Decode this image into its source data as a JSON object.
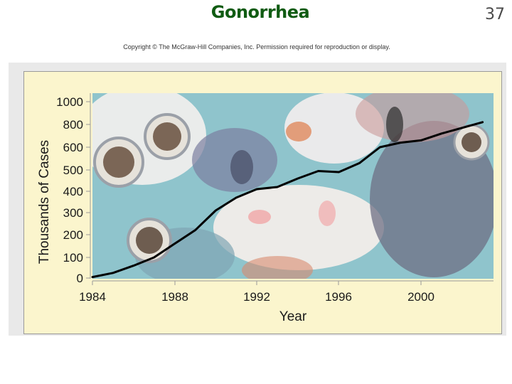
{
  "slide": {
    "title": "Gonorrhea",
    "page_number": "37",
    "copyright": "Copyright © The McGraw-Hill Companies, Inc. Permission required for reproduction or display."
  },
  "background_image": "micrograph of gonorrhea bacteria inside cells",
  "colors": {
    "title": "#0f5b12",
    "line": "#000000",
    "frame_fill": "#fbf5cd"
  },
  "chart_data": {
    "type": "line",
    "title": "",
    "xlabel": "Year",
    "ylabel": "Thousands of Cases",
    "x_ticks": [
      "1984",
      "1988",
      "1992",
      "1996",
      "2000"
    ],
    "y_ticks": [
      "0",
      "100",
      "200",
      "300",
      "400",
      "500",
      "600",
      "800",
      "1000"
    ],
    "y_scale": "nonlinear (compressed above 500)",
    "xlim": [
      1984,
      2003.5
    ],
    "ylim": [
      0,
      1000
    ],
    "grid": false,
    "legend": "none",
    "series": [
      {
        "values_x": [
          1984,
          1985,
          1986,
          1987,
          1988,
          1989,
          1990,
          1991,
          1992,
          1993,
          1994,
          1995,
          1996,
          1997,
          1998,
          1999,
          2000,
          2001,
          2002,
          2003
        ],
        "values_y": [
          5,
          25,
          60,
          100,
          160,
          220,
          310,
          370,
          410,
          420,
          460,
          495,
          490,
          530,
          600,
          640,
          660,
          720,
          770,
          820
        ]
      }
    ]
  }
}
